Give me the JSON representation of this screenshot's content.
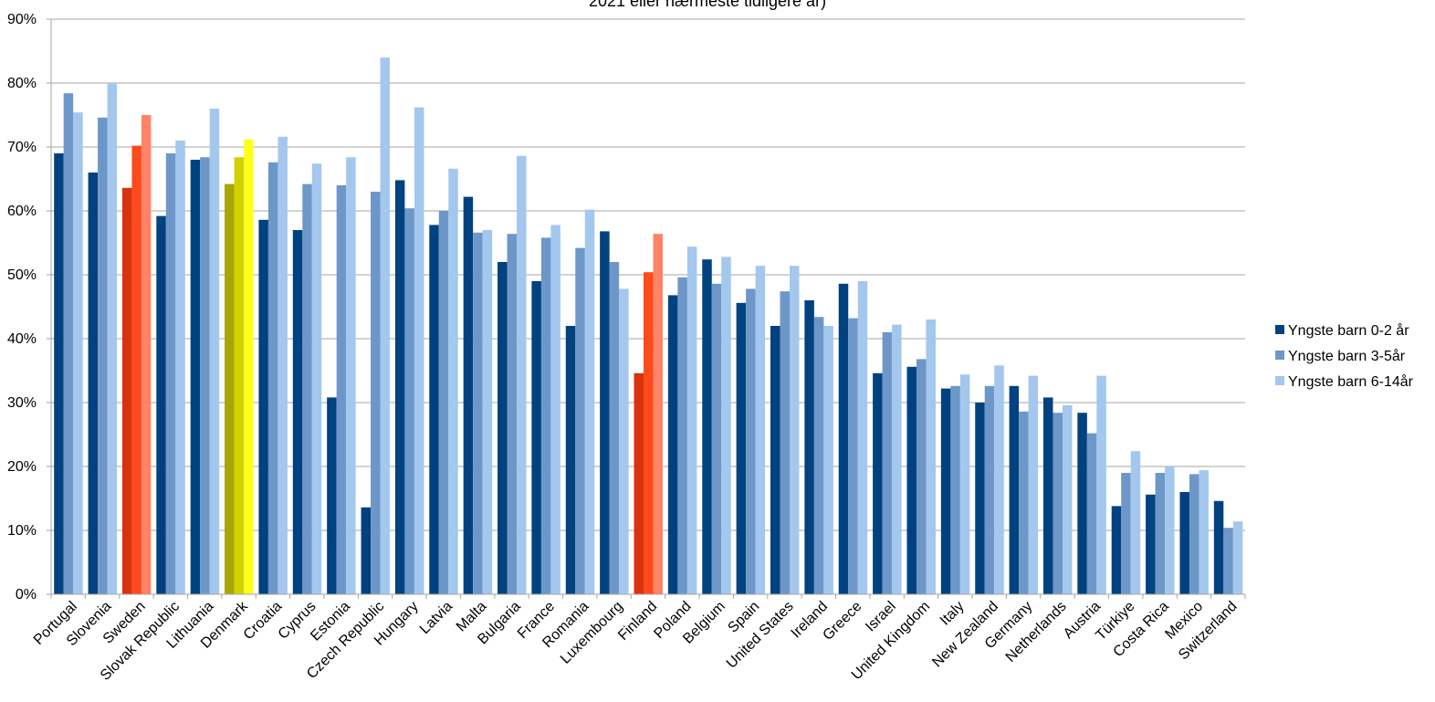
{
  "chart_data": {
    "type": "bar",
    "title": "2021 eller nærmeste tidligere år)",
    "xlabel": "",
    "ylabel": "",
    "ylim": [
      0,
      90
    ],
    "yticks": [
      "0%",
      "10%",
      "20%",
      "30%",
      "40%",
      "50%",
      "60%",
      "70%",
      "80%",
      "90%"
    ],
    "grid": true,
    "legend_position": "right",
    "categories": [
      "Portugal",
      "Slovenia",
      "Sweden",
      "Slovak Republic",
      "Lithuania",
      "Denmark",
      "Croatia",
      "Cyprus",
      "Estonia",
      "Czech Republic",
      "Hungary",
      "Latvia",
      "Malta",
      "Bulgaria",
      "France",
      "Romania",
      "Luxembourg",
      "Finland",
      "Poland",
      "Belgium",
      "Spain",
      "United States",
      "Ireland",
      "Greece",
      "Israel",
      "United Kingdom",
      "Italy",
      "New Zealand",
      "Germany",
      "Netherlands",
      "Austria",
      "Türkiye",
      "Costa Rica",
      "Mexico",
      "Switzerland"
    ],
    "series": [
      {
        "name": "Yngste barn 0-2 år",
        "color": "#00427f",
        "values": [
          69.0,
          66.0,
          63.6,
          59.2,
          68.0,
          64.2,
          58.6,
          57.0,
          30.8,
          13.6,
          64.8,
          57.8,
          62.2,
          52.0,
          49.0,
          42.0,
          56.8,
          34.6,
          46.8,
          52.4,
          45.6,
          42.0,
          46.0,
          48.6,
          34.6,
          35.6,
          32.2,
          30.0,
          32.6,
          30.8,
          28.4,
          13.8,
          15.6,
          16.0,
          14.6
        ]
      },
      {
        "name": "Yngste barn 3-5år",
        "color": "#6e97c9",
        "values": [
          78.4,
          74.6,
          70.2,
          69.0,
          68.4,
          68.4,
          67.6,
          64.2,
          64.0,
          63.0,
          60.4,
          60.0,
          56.6,
          56.4,
          55.8,
          54.2,
          52.0,
          50.4,
          49.6,
          48.6,
          47.8,
          47.4,
          43.4,
          43.2,
          41.0,
          36.8,
          32.6,
          32.6,
          28.6,
          28.4,
          25.2,
          19.0,
          19.0,
          18.8,
          10.4
        ]
      },
      {
        "name": "Yngste barn 6-14år",
        "color": "#a4c7ee",
        "values": [
          75.4,
          80.0,
          75.0,
          71.0,
          76.0,
          71.2,
          71.6,
          67.4,
          68.4,
          84.0,
          76.2,
          66.6,
          57.0,
          68.6,
          57.8,
          60.2,
          47.8,
          56.4,
          54.4,
          52.8,
          51.4,
          51.4,
          42.0,
          49.0,
          42.2,
          43.0,
          34.4,
          35.8,
          34.2,
          29.6,
          34.2,
          22.4,
          20.0,
          19.4,
          11.4
        ]
      }
    ],
    "highlights": {
      "Sweden": [
        "#d9330e",
        "#ff4a1c",
        "#ff8366"
      ],
      "Finland": [
        "#d9330e",
        "#ff4a1c",
        "#ff8366"
      ],
      "Denmark": [
        "#a8a600",
        "#d3d000",
        "#ffff1a"
      ]
    }
  }
}
